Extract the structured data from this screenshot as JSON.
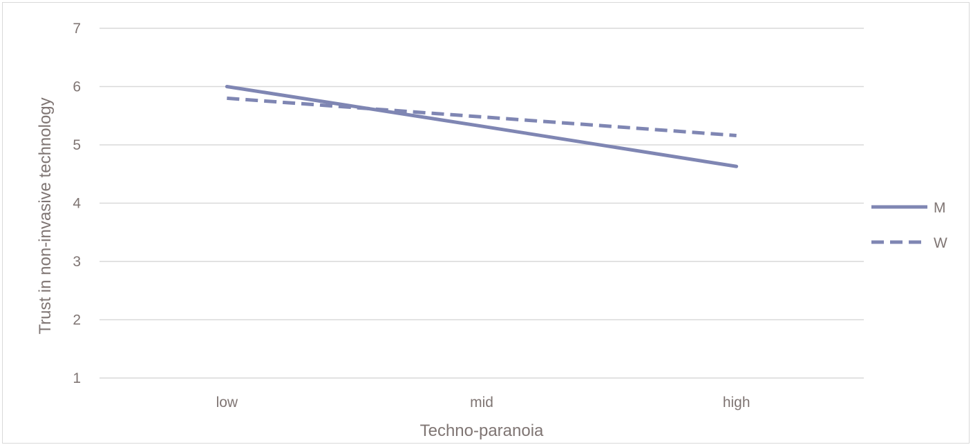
{
  "chart_data": {
    "type": "line",
    "title": "",
    "xlabel": "Techno-paranoia",
    "ylabel": "Trust in non-invasive technology",
    "categories": [
      "low",
      "mid",
      "high"
    ],
    "ylim": [
      1,
      7
    ],
    "yticks": [
      1,
      2,
      3,
      4,
      5,
      6,
      7
    ],
    "grid": true,
    "legend_position": "right",
    "series": [
      {
        "name": "M",
        "values": [
          6.0,
          5.32,
          4.63
        ],
        "style": "solid",
        "color": "#7f86b3"
      },
      {
        "name": "W",
        "values": [
          5.8,
          5.48,
          5.16
        ],
        "style": "dashed",
        "color": "#7f86b3"
      }
    ]
  }
}
